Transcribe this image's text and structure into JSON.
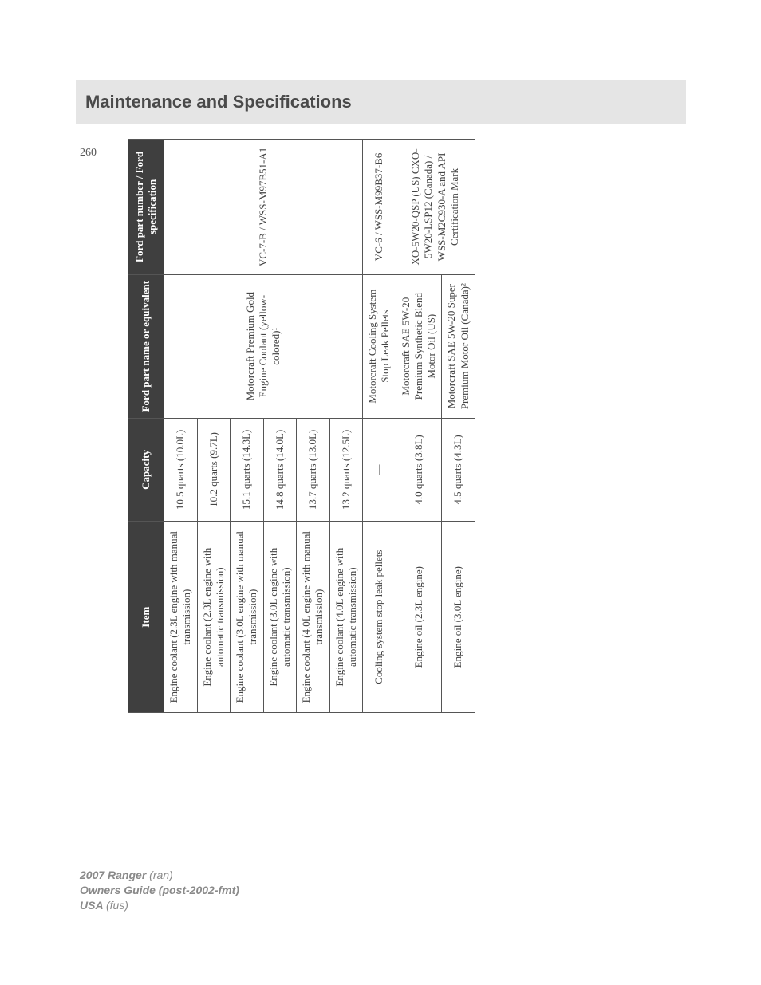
{
  "header": {
    "title": "Maintenance and Specifications"
  },
  "pageNumber": "260",
  "footer": {
    "line1a": "2007 Ranger ",
    "line1b": "(ran)",
    "line2": "Owners Guide (post-2002-fmt)",
    "line3a": "USA ",
    "line3b": "(fus)"
  },
  "table": {
    "headers": {
      "item": "Item",
      "capacity": "Capacity",
      "partName": "Ford part name or equivalent",
      "partNumber": "Ford part number / Ford specification"
    },
    "rows": [
      {
        "item": "Engine coolant (2.3L engine with manual transmission)",
        "capacity": "10.5 quarts (10.0L)"
      },
      {
        "item": "Engine coolant (2.3L engine with automatic transmission)",
        "capacity": "10.2 quarts (9.7L)"
      },
      {
        "item": "Engine coolant (3.0L engine with manual transmission)",
        "capacity": "15.1 quarts (14.3L)"
      },
      {
        "item": "Engine coolant (3.0L engine with automatic transmission)",
        "capacity": "14.8 quarts (14.0L)"
      },
      {
        "item": "Engine coolant (4.0L engine with manual transmission)",
        "capacity": "13.7 quarts (13.0L)"
      },
      {
        "item": "Engine coolant (4.0L engine with automatic transmission)",
        "capacity": "13.2 quarts (12.5L)"
      },
      {
        "item": "Cooling system stop leak pellets",
        "capacity": "—",
        "partName": "Motorcraft Cooling System Stop Leak Pellets",
        "partNumber": "VC-6 / WSS-M99B37-B6"
      },
      {
        "item": "Engine oil (2.3L engine)",
        "capacity": "4.0 quarts (3.8L)",
        "partName": "Motorcraft SAE 5W-20 Premium Synthetic Blend Motor Oil (US)",
        "partNumber": "XO-5W20-QSP (US) CXO-5W20-LSP12 (Canada) /"
      },
      {
        "item": "Engine oil (3.0L engine)",
        "capacity": "4.5 quarts (4.3L)",
        "partName": "Motorcraft SAE 5W-20 Super Premium Motor Oil (Canada)²",
        "partNumber": "WSS-M2C930-A and API Certification Mark"
      }
    ],
    "mergedCells": {
      "coolantPartName": "Motorcraft Premium Gold Engine Coolant (yellow-colored)¹",
      "coolantPartNumber": "VC-7-B / WSS-M97B51-A1"
    },
    "columnWidths": {
      "item": 240,
      "capacity": 130,
      "partName": 180,
      "partNumber": 170
    }
  }
}
